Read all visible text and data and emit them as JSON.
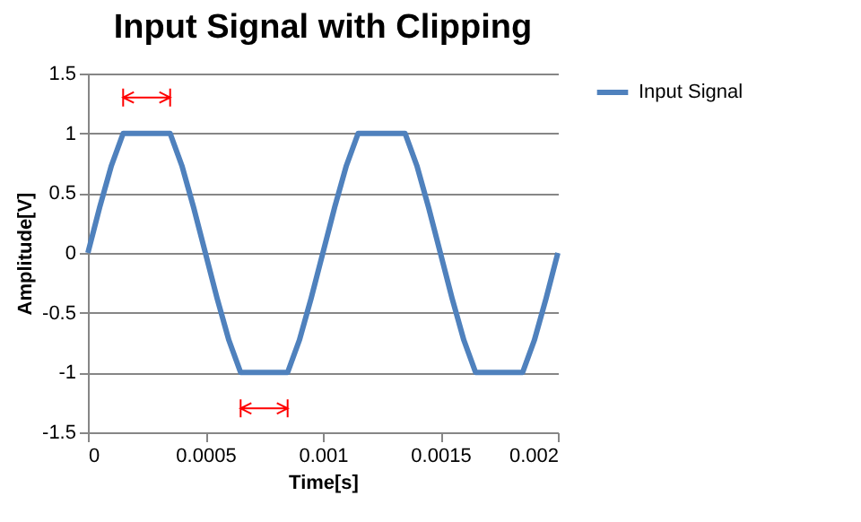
{
  "chart_data": {
    "type": "line",
    "title": "Input Signal with Clipping",
    "xlabel": "Time[s]",
    "ylabel": "Amplitude[V]",
    "x": [
      0,
      5e-05,
      0.0001,
      0.00015,
      0.0002,
      0.00025,
      0.0003,
      0.00035,
      0.0004,
      0.00045,
      0.0005,
      0.00055,
      0.0006,
      0.00065,
      0.0007,
      0.00075,
      0.0008,
      0.00085,
      0.0009,
      0.00095,
      0.001,
      0.00105,
      0.0011,
      0.00115,
      0.0012,
      0.00125,
      0.0013,
      0.00135,
      0.0014,
      0.00145,
      0.0015,
      0.00155,
      0.0016,
      0.00165,
      0.0017,
      0.00175,
      0.0018,
      0.00185,
      0.0019,
      0.00195,
      0.002
    ],
    "series": [
      {
        "name": "Input Signal",
        "color": "#4f81bd",
        "values": [
          0,
          0.38,
          0.73,
          1,
          1,
          1,
          1,
          1,
          0.73,
          0.38,
          0,
          -0.38,
          -0.73,
          -1,
          -1,
          -1,
          -1,
          -1,
          -0.73,
          -0.38,
          0,
          0.38,
          0.73,
          1,
          1,
          1,
          1,
          1,
          0.73,
          0.38,
          0,
          -0.38,
          -0.73,
          -1,
          -1,
          -1,
          -1,
          -1,
          -0.73,
          -0.38,
          0
        ]
      }
    ],
    "xlim": [
      0,
      0.002
    ],
    "xticks": [
      0,
      0.0005,
      0.001,
      0.0015,
      0.002
    ],
    "ylim": [
      -1.5,
      1.5
    ],
    "yticks": [
      -1.5,
      -1,
      -0.5,
      0,
      0.5,
      1,
      1.5
    ],
    "grid": "y",
    "legend": "right",
    "line_style": "solid",
    "marker": "none"
  }
}
